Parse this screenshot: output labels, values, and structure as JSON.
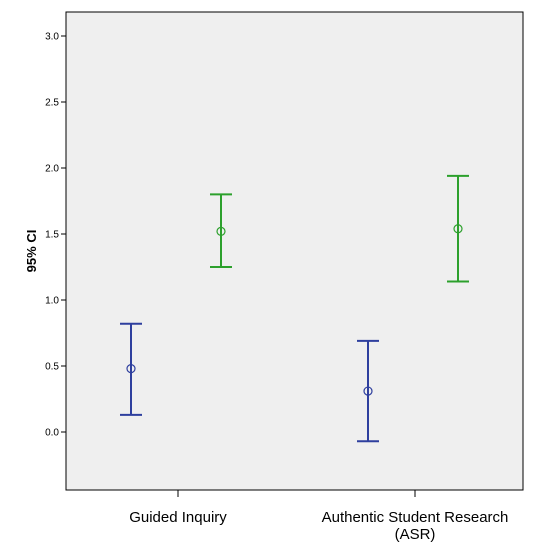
{
  "chart_data": {
    "type": "errorbar",
    "ylabel": "95% CI",
    "xlabel": "",
    "title": "",
    "ylim": [
      -0.43,
      3.2
    ],
    "yticks": [
      0.0,
      0.5,
      1.0,
      1.5,
      2.0,
      2.5,
      3.0
    ],
    "ytick_labels": [
      "0.0",
      "0.5",
      "1.0",
      "1.5",
      "2.0",
      "2.5",
      "3.0"
    ],
    "categories": [
      "Guided Inquiry",
      "Authentic Student Research\n(ASR)"
    ],
    "background_color": "#efefef",
    "grid": false,
    "series": [
      {
        "color": "#2e3f9e",
        "points": [
          {
            "mean": 0.48,
            "lower": 0.13,
            "upper": 0.82
          },
          {
            "mean": 0.31,
            "lower": -0.07,
            "upper": 0.69
          }
        ]
      },
      {
        "color": "#2ca02c",
        "points": [
          {
            "mean": 1.52,
            "lower": 1.25,
            "upper": 1.8
          },
          {
            "mean": 1.54,
            "lower": 1.14,
            "upper": 1.94
          }
        ]
      }
    ]
  }
}
